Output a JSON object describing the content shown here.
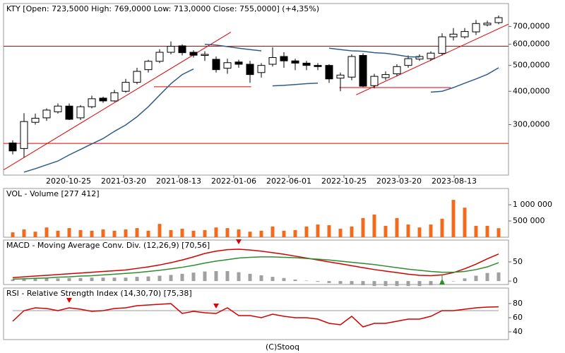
{
  "chart_data": [
    {
      "type": "candlestick",
      "title": "KTY [Open: 723,5000  High: 769,0000  Low: 713,0000  Close: 755,0000] (+4,35%)",
      "categories": [
        null,
        null,
        null,
        null,
        null,
        null,
        null,
        null,
        null,
        null,
        null,
        null,
        null,
        null,
        null,
        null,
        null,
        null,
        null,
        null,
        null,
        null,
        null,
        null,
        null,
        null,
        null,
        null,
        null,
        null,
        null,
        null,
        null,
        null,
        null,
        null,
        null,
        null,
        null,
        null,
        null,
        null,
        null,
        null
      ],
      "open": [
        256,
        244,
        306,
        318,
        335,
        352,
        318,
        350,
        377,
        368,
        400,
        432,
        482,
        518,
        560,
        592,
        560,
        545,
        527,
        488,
        515,
        505,
        470,
        505,
        540,
        520,
        510,
        500,
        500,
        448,
        452,
        545,
        420,
        450,
        465,
        500,
        528,
        530,
        555,
        640,
        640,
        668,
        710,
        723.5
      ],
      "high": [
        262,
        331,
        330,
        345,
        360,
        360,
        355,
        385,
        382,
        405,
        445,
        490,
        525,
        575,
        615,
        600,
        570,
        565,
        540,
        530,
        525,
        520,
        510,
        585,
        560,
        530,
        520,
        510,
        505,
        470,
        550,
        555,
        465,
        475,
        505,
        545,
        550,
        565,
        660,
        690,
        690,
        740,
        735,
        769
      ],
      "low": [
        232,
        226,
        300,
        310,
        330,
        312,
        312,
        345,
        362,
        365,
        395,
        425,
        470,
        510,
        550,
        545,
        535,
        520,
        470,
        465,
        490,
        430,
        450,
        495,
        490,
        480,
        480,
        480,
        430,
        400,
        440,
        415,
        410,
        440,
        455,
        490,
        520,
        520,
        545,
        620,
        630,
        650,
        700,
        713
      ],
      "close": [
        239,
        308,
        317,
        340,
        352,
        314,
        350,
        375,
        368,
        395,
        432,
        475,
        518,
        560,
        590,
        558,
        546,
        550,
        482,
        512,
        505,
        462,
        500,
        535,
        520,
        510,
        500,
        495,
        445,
        460,
        540,
        418,
        455,
        462,
        495,
        530,
        540,
        556,
        640,
        655,
        670,
        718,
        720,
        755
      ],
      "series": [
        {
          "color": "#2f5d8a",
          "values": [
            null,
            199,
            205,
            212,
            219,
            231,
            242,
            254,
            266,
            283,
            299,
            321,
            350,
            387,
            427,
            462,
            485,
            null,
            null,
            null,
            null,
            null,
            null,
            null,
            null,
            null,
            null,
            null,
            null,
            null,
            null,
            null,
            null,
            null,
            null,
            null,
            null,
            null,
            null,
            null,
            null,
            null,
            null,
            null
          ]
        },
        {
          "color": "#2f5d8a",
          "values": [
            null,
            null,
            null,
            null,
            null,
            null,
            null,
            null,
            null,
            null,
            null,
            null,
            null,
            null,
            null,
            null,
            null,
            600,
            596,
            588,
            580,
            573,
            567,
            null,
            null,
            null,
            null,
            null,
            null,
            null,
            null,
            null,
            null,
            null,
            null,
            null,
            null,
            null,
            null,
            null,
            null,
            null,
            null,
            null
          ]
        },
        {
          "color": "#2f5d8a",
          "values": [
            null,
            null,
            null,
            null,
            null,
            null,
            null,
            null,
            null,
            null,
            null,
            null,
            null,
            null,
            null,
            null,
            null,
            null,
            null,
            null,
            null,
            null,
            null,
            419,
            421,
            424,
            427,
            429,
            null,
            null,
            null,
            null,
            null,
            null,
            null,
            null,
            null,
            null,
            null,
            null,
            null,
            null,
            null,
            null
          ]
        },
        {
          "color": "#2f5d8a",
          "values": [
            null,
            null,
            null,
            null,
            null,
            null,
            null,
            null,
            null,
            null,
            null,
            null,
            null,
            null,
            null,
            null,
            null,
            null,
            null,
            null,
            null,
            null,
            null,
            null,
            null,
            null,
            null,
            null,
            580,
            573,
            567,
            565,
            558,
            555,
            548,
            539,
            537,
            null,
            null,
            null,
            null,
            null,
            null,
            null
          ]
        },
        {
          "color": "#2f5d8a",
          "values": [
            null,
            null,
            null,
            null,
            null,
            null,
            null,
            null,
            null,
            null,
            null,
            null,
            null,
            null,
            null,
            null,
            null,
            null,
            null,
            null,
            null,
            null,
            null,
            null,
            null,
            null,
            null,
            null,
            null,
            null,
            null,
            null,
            null,
            null,
            null,
            null,
            null,
            397,
            400,
            413,
            429,
            445,
            463,
            490
          ]
        }
      ],
      "trendlines": [
        {
          "x": [
            -0.8,
            19.3
          ],
          "y": [
            203,
            666
          ]
        },
        {
          "x": [
            12.5,
            21.1
          ],
          "y": [
            416,
            416
          ]
        },
        {
          "x": [
            28.9,
            38.75
          ],
          "y": [
            413,
            413
          ]
        },
        {
          "x": [
            30.4,
            43.9
          ],
          "y": [
            388,
            715
          ]
        }
      ],
      "hlines": [
        590,
        255
      ],
      "line_color": "#e00000",
      "log_scale": true,
      "ylim": [
        194,
        853
      ],
      "yticks": [
        {
          "value": 700,
          "label": "700,0000"
        },
        {
          "value": 600,
          "label": "600,0000"
        },
        {
          "value": 500,
          "label": "500,0000"
        },
        {
          "value": 400,
          "label": "400,0000"
        },
        {
          "value": 300,
          "label": "300,0000"
        }
      ],
      "xticks": [
        "2020-10-25",
        "2021-03-20",
        "2021-08-13",
        "2022-01-06",
        "2022-06-01",
        "2022-10-25",
        "2023-03-20",
        "2023-08-13"
      ]
    },
    {
      "type": "bar",
      "title": "VOL - Volume [277 412]",
      "color": "#f26b1d",
      "values": [
        150000,
        240000,
        170000,
        300000,
        200000,
        280000,
        220000,
        200000,
        240000,
        200000,
        240000,
        280000,
        200000,
        410000,
        220000,
        260000,
        200000,
        220000,
        300000,
        280000,
        240000,
        170000,
        200000,
        330000,
        200000,
        220000,
        330000,
        390000,
        370000,
        260000,
        330000,
        590000,
        700000,
        350000,
        590000,
        390000,
        300000,
        390000,
        570000,
        1150000,
        910000,
        350000,
        350000,
        277412
      ],
      "ylim": [
        0,
        1500000
      ],
      "yticks": [
        {
          "value": 1000000,
          "label": "1 000 000"
        },
        {
          "value": 500000,
          "label": "500 000"
        }
      ]
    },
    {
      "type": "line",
      "title": "MACD - Moving Average Conv. Div. (12,26,9) [70,56]",
      "series": [
        {
          "color": "#d40000",
          "values": [
            9,
            11,
            13,
            15,
            17,
            19,
            21,
            23,
            25,
            27,
            29,
            33,
            37,
            42,
            48,
            55,
            63,
            72,
            78,
            82,
            83,
            81,
            78,
            74,
            70,
            65,
            60,
            55,
            50,
            45,
            40,
            35,
            30,
            26,
            22,
            18,
            15,
            14,
            16,
            22,
            32,
            44,
            58,
            70.56
          ]
        },
        {
          "color": "#2e8b2e",
          "values": [
            5,
            6,
            7,
            8,
            10,
            11,
            13,
            14,
            16,
            18,
            20,
            22,
            25,
            28,
            32,
            36,
            41,
            47,
            52,
            56,
            60,
            62,
            63,
            63,
            62,
            61,
            59,
            57,
            55,
            52,
            49,
            46,
            43,
            39,
            35,
            31,
            28,
            25,
            23,
            23,
            25,
            30,
            37,
            48
          ]
        }
      ],
      "histogram": {
        "color": "#a0a0a0",
        "values": [
          4,
          5,
          6,
          7,
          7,
          8,
          8,
          9,
          9,
          9,
          9,
          11,
          12,
          14,
          16,
          19,
          22,
          25,
          26,
          26,
          23,
          19,
          15,
          11,
          8,
          4,
          1,
          -2,
          -5,
          -7,
          -9,
          -11,
          -13,
          -13,
          -13,
          -13,
          -13,
          -11,
          -7,
          -1,
          7,
          14,
          21,
          22.56
        ]
      },
      "sell_signals": [
        20
      ],
      "buy_signals": [
        38
      ],
      "ylim": [
        -9,
        107
      ],
      "yticks": [
        50,
        0
      ]
    },
    {
      "type": "line",
      "title": "RSI - Relative Strength Index (14,30,70) [75,38]",
      "series": [
        {
          "color": "#d40000",
          "values": [
            55,
            70,
            74,
            73,
            70,
            74,
            72,
            69,
            70,
            73,
            74,
            77,
            78,
            79,
            80,
            66,
            69,
            67,
            66,
            74,
            63,
            63,
            60,
            65,
            62,
            60,
            60,
            58,
            52,
            50,
            62,
            47,
            52,
            52,
            55,
            58,
            58,
            62,
            70,
            70,
            72,
            74,
            75,
            75.38
          ]
        }
      ],
      "levels": [
        70
      ],
      "level_color": "#999999",
      "sell_signals": [
        5,
        18
      ],
      "ylim": [
        29,
        102
      ],
      "yticks": [
        80,
        60,
        40
      ]
    }
  ],
  "footer": "(C)Stooq"
}
